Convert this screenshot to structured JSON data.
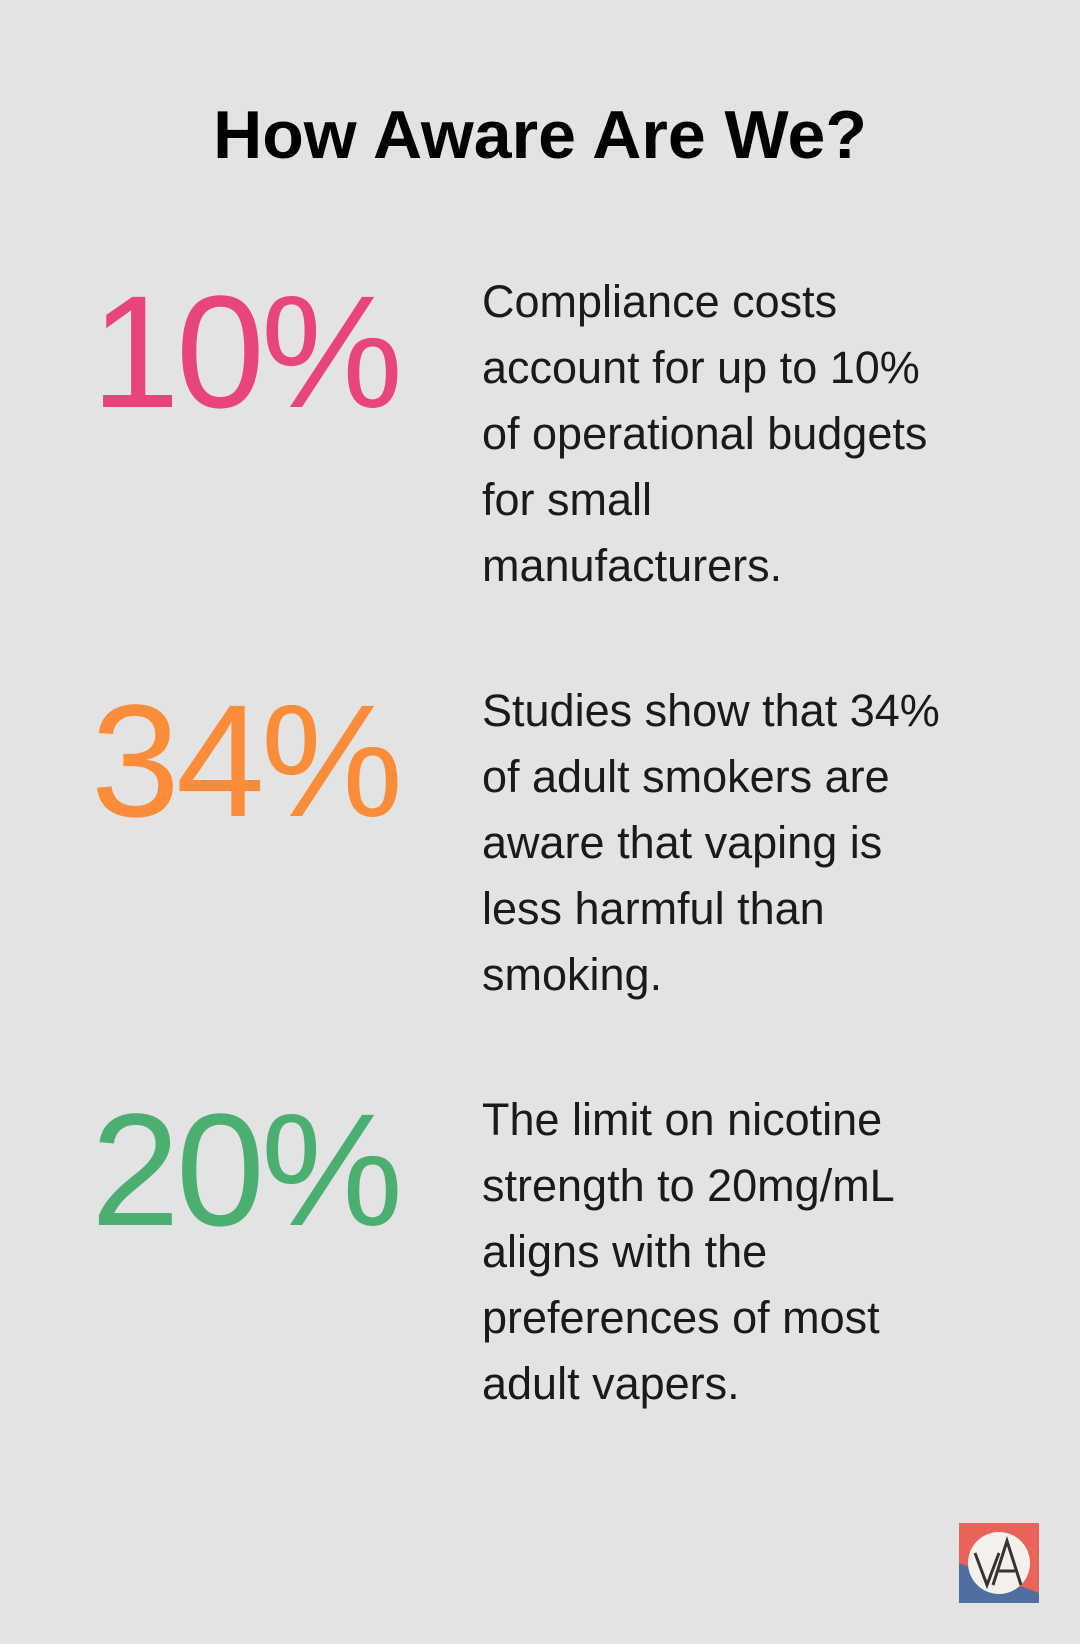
{
  "title": "How Aware Are We?",
  "stats": [
    {
      "value": "10%",
      "color": "#e8457a",
      "lines": [
        "Compliance costs",
        "account for up to 10%",
        "of operational budgets",
        "for small",
        "manufacturers."
      ]
    },
    {
      "value": "34%",
      "color": "#fb8c3a",
      "lines": [
        "Studies show that 34%",
        "of adult smokers are",
        "aware that vaping is",
        "less harmful than",
        "smoking."
      ]
    },
    {
      "value": "20%",
      "color": "#4caf72",
      "lines": [
        "The limit on nicotine",
        "strength to 20mg/mL",
        "aligns with the",
        "preferences of most",
        "adult vapers."
      ]
    }
  ]
}
